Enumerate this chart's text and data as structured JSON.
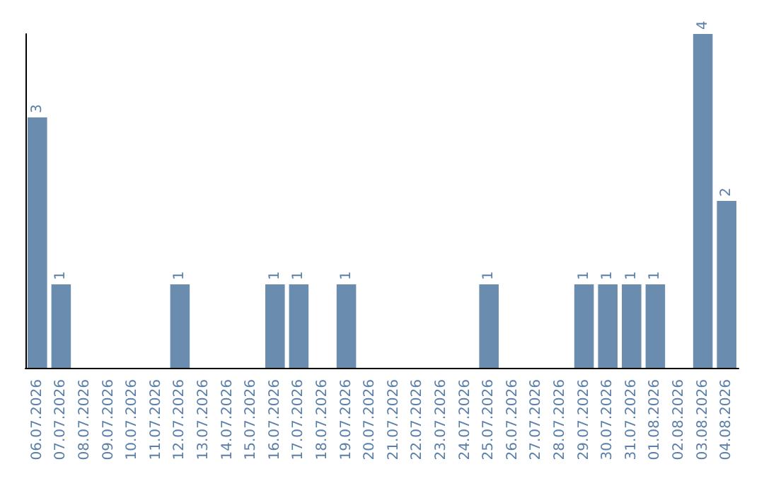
{
  "chart_data": {
    "type": "bar",
    "categories": [
      "06.07.2026",
      "07.07.2026",
      "08.07.2026",
      "09.07.2026",
      "10.07.2026",
      "11.07.2026",
      "12.07.2026",
      "13.07.2026",
      "14.07.2026",
      "15.07.2026",
      "16.07.2026",
      "17.07.2026",
      "18.07.2026",
      "19.07.2026",
      "20.07.2026",
      "21.07.2026",
      "22.07.2026",
      "23.07.2026",
      "24.07.2026",
      "25.07.2026",
      "26.07.2026",
      "27.07.2026",
      "28.07.2026",
      "29.07.2026",
      "30.07.2026",
      "31.07.2026",
      "01.08.2026",
      "02.08.2026",
      "03.08.2026",
      "04.08.2026"
    ],
    "values": [
      3,
      1,
      0,
      0,
      0,
      0,
      1,
      0,
      0,
      0,
      1,
      1,
      0,
      1,
      0,
      0,
      0,
      0,
      0,
      1,
      0,
      0,
      0,
      1,
      1,
      1,
      1,
      0,
      4,
      2
    ],
    "value_labels": [
      "3",
      "1",
      null,
      null,
      null,
      null,
      "1",
      null,
      null,
      null,
      "1",
      "1",
      null,
      "1",
      null,
      null,
      null,
      null,
      null,
      "1",
      null,
      null,
      null,
      "1",
      "1",
      "1",
      "1",
      null,
      "4",
      "2"
    ],
    "color": "#6a8cae",
    "grid": false,
    "tick_labels": "x"
  }
}
